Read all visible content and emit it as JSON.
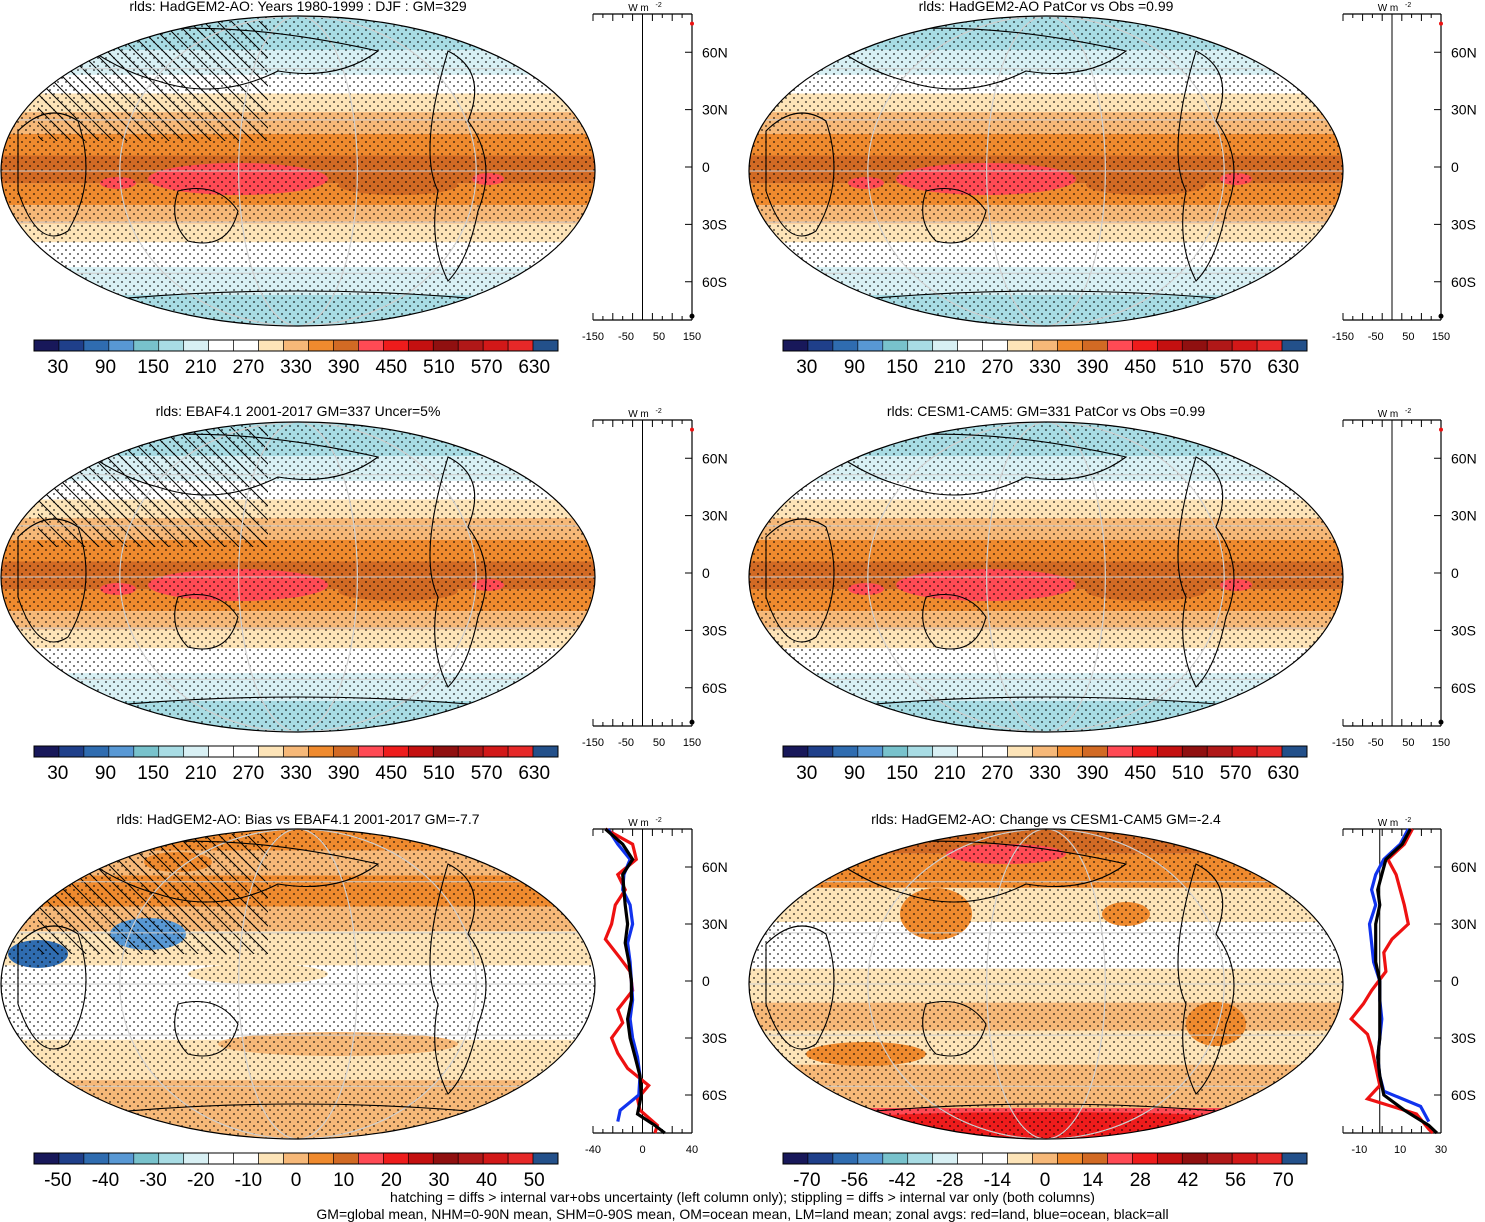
{
  "chart_data": [
    {
      "type": "heatmap",
      "title": "rlds: HadGEM2-AO: Years 1980-1999 : DJF : GM=329",
      "colorbar_labels": [
        "30",
        "90",
        "150",
        "210",
        "270",
        "330",
        "390",
        "450",
        "510",
        "570",
        "630"
      ],
      "colorbar_range": [
        0,
        660
      ],
      "zonal_panel": {
        "units_label": "W m",
        "units_exp": "-2",
        "x_ticks": [
          "-150",
          "-50",
          "50",
          "150"
        ],
        "x_range": [
          -150,
          150
        ]
      },
      "lat_ticks": [
        "60N",
        "30N",
        "0",
        "30S",
        "60S"
      ]
    },
    {
      "type": "heatmap",
      "title": "rlds: HadGEM2-AO PatCor vs Obs =0.99",
      "colorbar_labels": [
        "30",
        "90",
        "150",
        "210",
        "270",
        "330",
        "390",
        "450",
        "510",
        "570",
        "630"
      ],
      "colorbar_range": [
        0,
        660
      ],
      "zonal_panel": {
        "units_label": "W m",
        "units_exp": "-2",
        "x_ticks": [
          "-150",
          "-50",
          "50",
          "150"
        ],
        "x_range": [
          -150,
          150
        ]
      },
      "lat_ticks": [
        "60N",
        "30N",
        "0",
        "30S",
        "60S"
      ]
    },
    {
      "type": "heatmap",
      "title": "rlds: EBAF4.1 2001-2017 GM=337 Uncer=5%",
      "colorbar_labels": [
        "30",
        "90",
        "150",
        "210",
        "270",
        "330",
        "390",
        "450",
        "510",
        "570",
        "630"
      ],
      "colorbar_range": [
        0,
        660
      ],
      "zonal_panel": {
        "units_label": "W m",
        "units_exp": "-2",
        "x_ticks": [
          "-150",
          "-50",
          "50",
          "150"
        ],
        "x_range": [
          -150,
          150
        ]
      },
      "lat_ticks": [
        "60N",
        "30N",
        "0",
        "30S",
        "60S"
      ]
    },
    {
      "type": "heatmap",
      "title": "rlds: CESM1-CAM5: GM=331 PatCor vs Obs =0.99",
      "colorbar_labels": [
        "30",
        "90",
        "150",
        "210",
        "270",
        "330",
        "390",
        "450",
        "510",
        "570",
        "630"
      ],
      "colorbar_range": [
        0,
        660
      ],
      "zonal_panel": {
        "units_label": "W m",
        "units_exp": "-2",
        "x_ticks": [
          "-150",
          "-50",
          "50",
          "150"
        ],
        "x_range": [
          -150,
          150
        ]
      },
      "lat_ticks": [
        "60N",
        "30N",
        "0",
        "30S",
        "60S"
      ]
    },
    {
      "type": "heatmap",
      "title": "rlds: HadGEM2-AO: Bias vs EBAF4.1 2001-2017 GM=-7.7",
      "colorbar_labels": [
        "-50",
        "-40",
        "-30",
        "-20",
        "-10",
        "0",
        "10",
        "20",
        "30",
        "40",
        "50"
      ],
      "colorbar_range": [
        -55,
        55
      ],
      "zonal_panel": {
        "units_label": "W m",
        "units_exp": "-2",
        "x_ticks": [
          "-40",
          "0",
          "40"
        ],
        "x_range": [
          -40,
          40
        ]
      },
      "lat_ticks": [
        "60N",
        "30N",
        "0",
        "30S",
        "60S"
      ]
    },
    {
      "type": "heatmap",
      "title": "rlds: HadGEM2-AO: Change vs CESM1-CAM5 GM=-2.4",
      "colorbar_labels": [
        "-70",
        "-56",
        "-42",
        "-28",
        "-14",
        "0",
        "14",
        "28",
        "42",
        "56",
        "70"
      ],
      "colorbar_range": [
        -77,
        77
      ],
      "zonal_panel": {
        "units_label": "W m",
        "units_exp": "-2",
        "x_ticks": [
          "-10",
          "10",
          "30"
        ],
        "x_range": [
          -18,
          30
        ]
      },
      "lat_ticks": [
        "60N",
        "30N",
        "0",
        "30S",
        "60S"
      ]
    }
  ],
  "colors": {
    "palette": [
      "#18185a",
      "#1f3f8a",
      "#2f6cb0",
      "#5898d4",
      "#78c2cc",
      "#a8dce4",
      "#d8f0f4",
      "#ffffff",
      "#ffffff",
      "#fde4b8",
      "#f6b878",
      "#ef8a2e",
      "#d26a24",
      "#ff4a54",
      "#ee1c1c",
      "#c41010",
      "#901010",
      "#b01818",
      "#d21818",
      "#e62828",
      "#23508a"
    ],
    "land": "red",
    "ocean": "blue",
    "all": "black"
  },
  "footer": {
    "line1": "hatching = diffs > internal var+obs uncertainty (left column only); stippling = diffs > internal var only (both columns)",
    "line2": "GM=global mean, NHM=0-90N mean, SHM=0-90S mean, OM=ocean mean, LM=land mean; zonal avgs: red=land, blue=ocean, black=all"
  }
}
